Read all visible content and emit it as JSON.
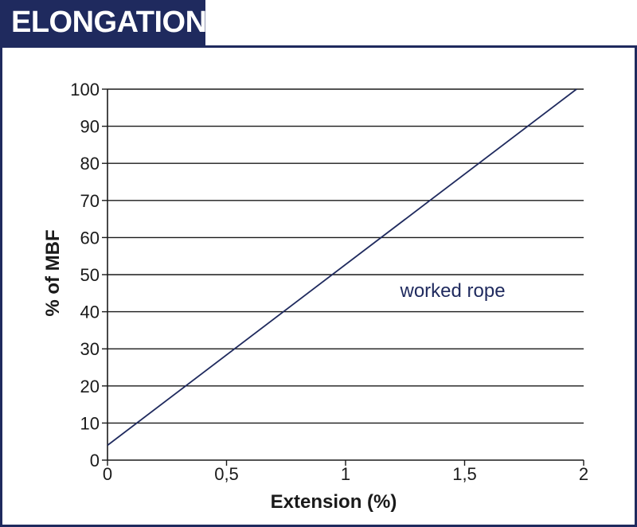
{
  "header": {
    "title": "ELONGATION:"
  },
  "colors": {
    "navy": "#1f2a5e",
    "grid": "#1a1a1a",
    "text": "#1a1a1a"
  },
  "chart_data": {
    "type": "line",
    "title": "",
    "xlabel": "Extension (%)",
    "ylabel": "% of MBF",
    "xlim": [
      0,
      2
    ],
    "ylim": [
      0,
      100
    ],
    "xticks": [
      0,
      0.5,
      1,
      1.5,
      2
    ],
    "xtick_labels": [
      "0",
      "0,5",
      "1",
      "1,5",
      "2"
    ],
    "yticks": [
      0,
      10,
      20,
      30,
      40,
      50,
      60,
      70,
      80,
      90,
      100
    ],
    "ytick_labels": [
      "0",
      "10",
      "20",
      "30",
      "40",
      "50",
      "60",
      "70",
      "80",
      "90",
      "100"
    ],
    "grid": {
      "horizontal": true,
      "vertical": false
    },
    "series": [
      {
        "x": [
          0,
          1.97
        ],
        "y": [
          4,
          100
        ]
      }
    ],
    "annotations": [
      {
        "text": "worked rope",
        "x": 1.45,
        "y": 44
      }
    ]
  }
}
